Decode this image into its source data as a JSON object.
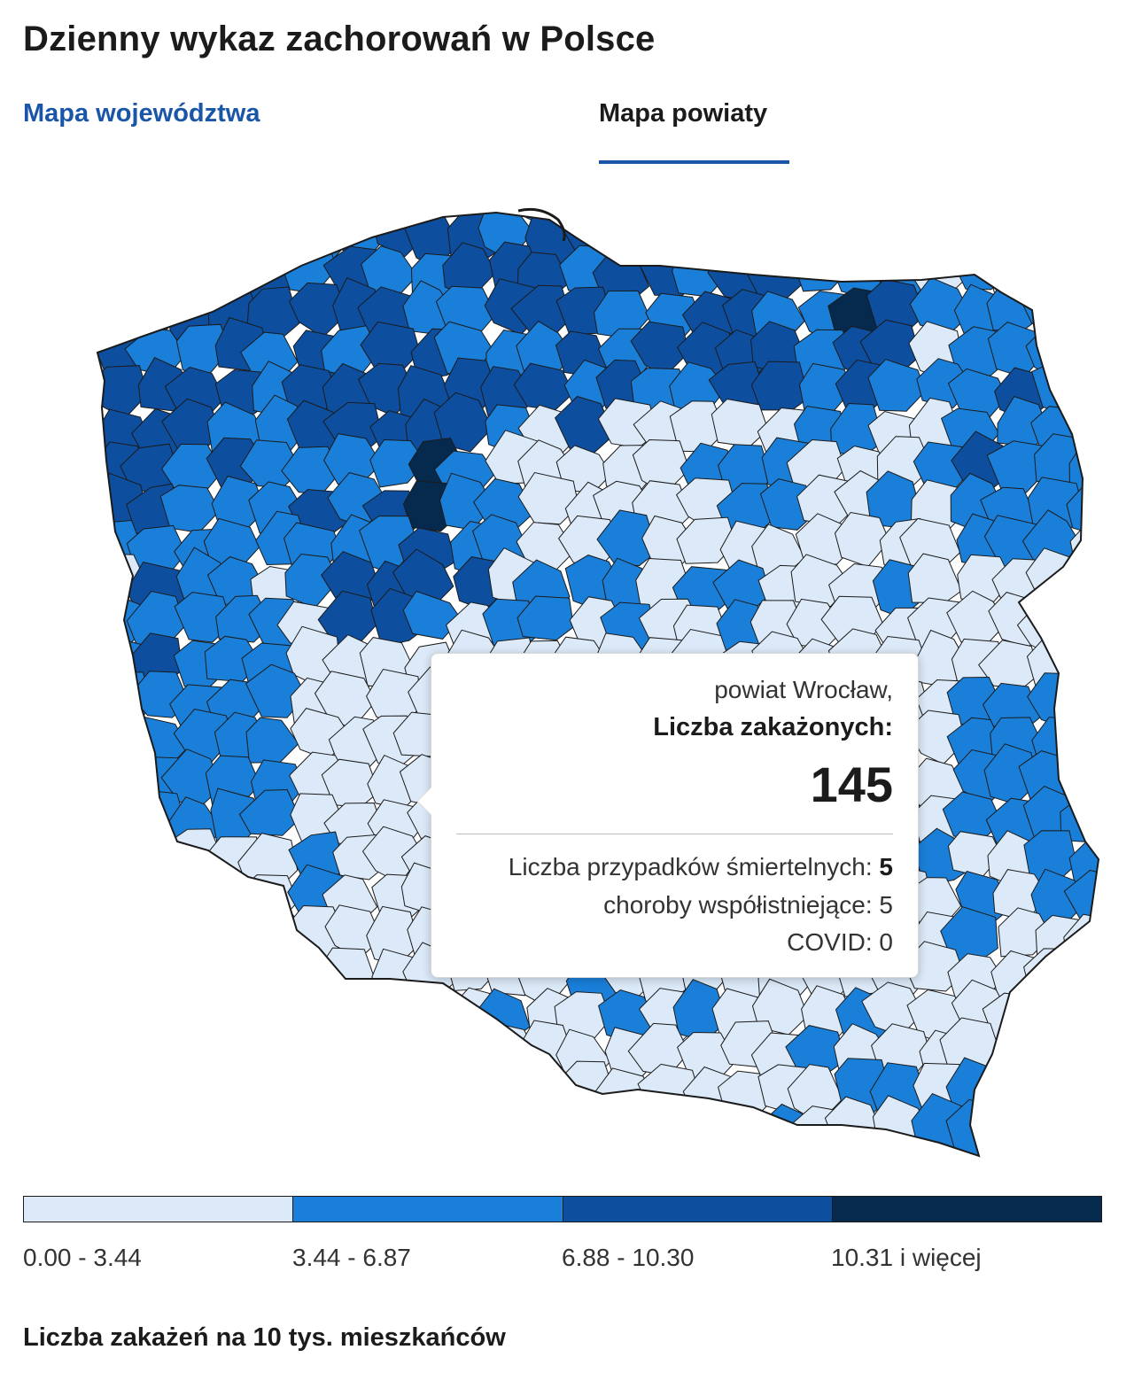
{
  "title": "Dzienny wykaz zachorowań w Polsce",
  "tabs": [
    {
      "label": "Mapa województwa",
      "active": false
    },
    {
      "label": "Mapa powiaty",
      "active": true
    }
  ],
  "map": {
    "region_colors": [
      "#dbe9f8",
      "#1a7fd9",
      "#0d4e9e",
      "#062a4d"
    ],
    "border_color": "#1b1b1b",
    "accent_color": "#1a56a8"
  },
  "tooltip": {
    "region": "powiat Wrocław,",
    "label": "Liczba zakażonych:",
    "value": "145",
    "deaths_label": "Liczba przypadków śmiertelnych:",
    "deaths_value": "5",
    "comorbid_label": "choroby współistniejące:",
    "comorbid_value": "5",
    "covid_label": "COVID:",
    "covid_value": "0"
  },
  "legend": {
    "bins": [
      {
        "label": "0.00 - 3.44",
        "color": "#dbe9f8"
      },
      {
        "label": "3.44 - 6.87",
        "color": "#1a7fd9"
      },
      {
        "label": "6.88 - 10.30",
        "color": "#0d4e9e"
      },
      {
        "label": "10.31 i więcej",
        "color": "#062a4d"
      }
    ],
    "caption": "Liczba zakażeń na 10 tys. mieszkańców"
  }
}
